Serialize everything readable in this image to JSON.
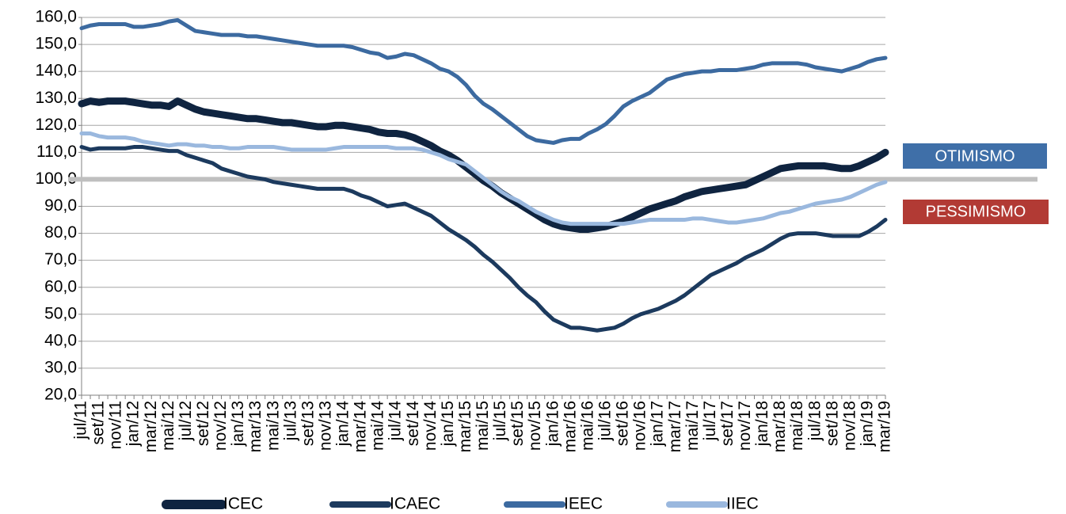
{
  "chart_data": {
    "type": "line",
    "categories": [
      "jul/11",
      null,
      "set/11",
      null,
      "nov/11",
      null,
      "jan/12",
      null,
      "mar/12",
      null,
      "mai/12",
      null,
      "jul/12",
      null,
      "set/12",
      null,
      "nov/12",
      null,
      "jan/13",
      null,
      "mar/13",
      null,
      "mai/13",
      null,
      "jul/13",
      null,
      "set/13",
      null,
      "nov/13",
      null,
      "jan/14",
      null,
      "mar/14",
      null,
      "mai/14",
      null,
      "jul/14",
      null,
      "set/14",
      null,
      "nov/14",
      null,
      "jan/15",
      null,
      "mar/15",
      null,
      "mai/15",
      null,
      "jul/15",
      null,
      "set/15",
      null,
      "nov/15",
      null,
      "jan/16",
      null,
      "mar/16",
      null,
      "mai/16",
      null,
      "jul/16",
      null,
      "set/16",
      null,
      "nov/16",
      null,
      "jan/17",
      null,
      "mar/17",
      null,
      "mai/17",
      null,
      "jul/17",
      null,
      "set/17",
      null,
      "nov/17",
      null,
      "jan/18",
      null,
      "mar/18",
      null,
      "mai/18",
      null,
      "jul/18",
      null,
      "set/18",
      null,
      "nov/18",
      null,
      "jan/19",
      null,
      "mar/19"
    ],
    "series": [
      {
        "name": "ICEC",
        "color": "#0f2440",
        "values": [
          128,
          129,
          128.5,
          129,
          129,
          129,
          128.5,
          128,
          127.5,
          127.5,
          127,
          129,
          127.5,
          126,
          125,
          124.5,
          124,
          123.5,
          123,
          122.5,
          122.5,
          122,
          121.5,
          121,
          121,
          120.5,
          120,
          119.5,
          119.5,
          120,
          120,
          119.5,
          119,
          118.5,
          117.5,
          117,
          117,
          116.5,
          115.5,
          114,
          112.5,
          110.5,
          109,
          107,
          104.5,
          102,
          99.5,
          97.5,
          95,
          93,
          91,
          89,
          87,
          85,
          83.5,
          82.5,
          82,
          81.5,
          81.5,
          82,
          82.5,
          83.5,
          84.5,
          86,
          87.5,
          89,
          90,
          91,
          92,
          93.5,
          94.5,
          95.5,
          96,
          96.5,
          97,
          97.5,
          98,
          99.5,
          101,
          102.5,
          104,
          104.5,
          105,
          105,
          105,
          105,
          104.5,
          104,
          104,
          105,
          106.5,
          108,
          110
        ]
      },
      {
        "name": "ICAEC",
        "color": "#1c3a5e",
        "values": [
          112,
          111,
          111.5,
          111.5,
          111.5,
          111.5,
          112,
          112,
          111.5,
          111,
          110.5,
          110.5,
          109,
          108,
          107,
          106,
          104,
          103,
          102,
          101,
          100.5,
          100,
          99,
          98.5,
          98,
          97.5,
          97,
          96.5,
          96.5,
          96.5,
          96.5,
          95.5,
          94,
          93,
          91.5,
          90,
          90.5,
          91,
          89.5,
          88,
          86.5,
          84,
          81.5,
          79.5,
          77.5,
          75,
          72,
          69.5,
          66.5,
          63.5,
          60,
          57,
          54.5,
          51,
          48,
          46.5,
          45,
          45,
          44.5,
          44,
          44.5,
          45,
          46.5,
          48.5,
          50,
          51,
          52,
          53.5,
          55,
          57,
          59.5,
          62,
          64.5,
          66,
          67.5,
          69,
          71,
          72.5,
          74,
          76,
          78,
          79.5,
          80,
          80,
          80,
          79.5,
          79,
          79,
          79,
          79,
          80.5,
          82.5,
          85
        ]
      },
      {
        "name": "IEEC",
        "color": "#3c6aa0",
        "values": [
          156,
          157,
          157.5,
          157.5,
          157.5,
          157.5,
          156.5,
          156.5,
          157,
          157.5,
          158.5,
          159,
          157,
          155,
          154.5,
          154,
          153.5,
          153.5,
          153.5,
          153,
          153,
          152.5,
          152,
          151.5,
          151,
          150.5,
          150,
          149.5,
          149.5,
          149.5,
          149.5,
          149,
          148,
          147,
          146.5,
          145,
          145.5,
          146.5,
          146,
          144.5,
          143,
          141,
          140,
          138,
          135,
          131,
          128,
          126,
          123.5,
          121,
          118.5,
          116,
          114.5,
          114,
          113.5,
          114.5,
          115,
          115,
          117,
          118.5,
          120.5,
          123.5,
          127,
          129,
          130.5,
          132,
          134.5,
          137,
          138,
          139,
          139.5,
          140,
          140,
          140.5,
          140.5,
          140.5,
          141,
          141.5,
          142.5,
          143,
          143,
          143,
          143,
          142.5,
          141.5,
          141,
          140.5,
          140,
          141,
          142,
          143.5,
          144.5,
          145
        ]
      },
      {
        "name": "IIEC",
        "color": "#9ab8de",
        "values": [
          117,
          117,
          116,
          115.5,
          115.5,
          115.5,
          115,
          114,
          113.5,
          113,
          112.5,
          113,
          113,
          112.5,
          112.5,
          112,
          112,
          111.5,
          111.5,
          112,
          112,
          112,
          112,
          111.5,
          111,
          111,
          111,
          111,
          111,
          111.5,
          112,
          112,
          112,
          112,
          112,
          112,
          111.5,
          111.5,
          111.5,
          111,
          110,
          109,
          107.5,
          106.5,
          105.5,
          103,
          100.5,
          98,
          95.5,
          93.5,
          92,
          90,
          88,
          86.5,
          85,
          84,
          83.5,
          83.5,
          83.5,
          83.5,
          83.5,
          83.5,
          83.5,
          84,
          84.5,
          85,
          85,
          85,
          85,
          85,
          85.5,
          85.5,
          85,
          84.5,
          84,
          84,
          84.5,
          85,
          85.5,
          86.5,
          87.5,
          88,
          89,
          90,
          91,
          91.5,
          92,
          92.5,
          93.5,
          95,
          96.5,
          98,
          99
        ]
      }
    ],
    "ylim": [
      20,
      160
    ],
    "yticks": [
      {
        "value": 20,
        "label": "20,0"
      },
      {
        "value": 30,
        "label": "30,0"
      },
      {
        "value": 40,
        "label": "40,0"
      },
      {
        "value": 50,
        "label": "50,0"
      },
      {
        "value": 60,
        "label": "60,0"
      },
      {
        "value": 70,
        "label": "70,0"
      },
      {
        "value": 80,
        "label": "80,0"
      },
      {
        "value": 90,
        "label": "90,0"
      },
      {
        "value": 100,
        "label": "100,0"
      },
      {
        "value": 110,
        "label": "110,0"
      },
      {
        "value": 120,
        "label": "120,0"
      },
      {
        "value": 130,
        "label": "130,0"
      },
      {
        "value": 140,
        "label": "140,0"
      },
      {
        "value": 150,
        "label": "150,0"
      },
      {
        "value": 160,
        "label": "160,0"
      }
    ],
    "grid": true,
    "reference_line": {
      "value": 100,
      "color": "#bfbfbf"
    },
    "annotations": [
      {
        "text": "OTIMISMO",
        "color": "#3f6fa8"
      },
      {
        "text": "PESSIMISMO",
        "color": "#b23a34"
      }
    ],
    "legend": "bottom"
  }
}
